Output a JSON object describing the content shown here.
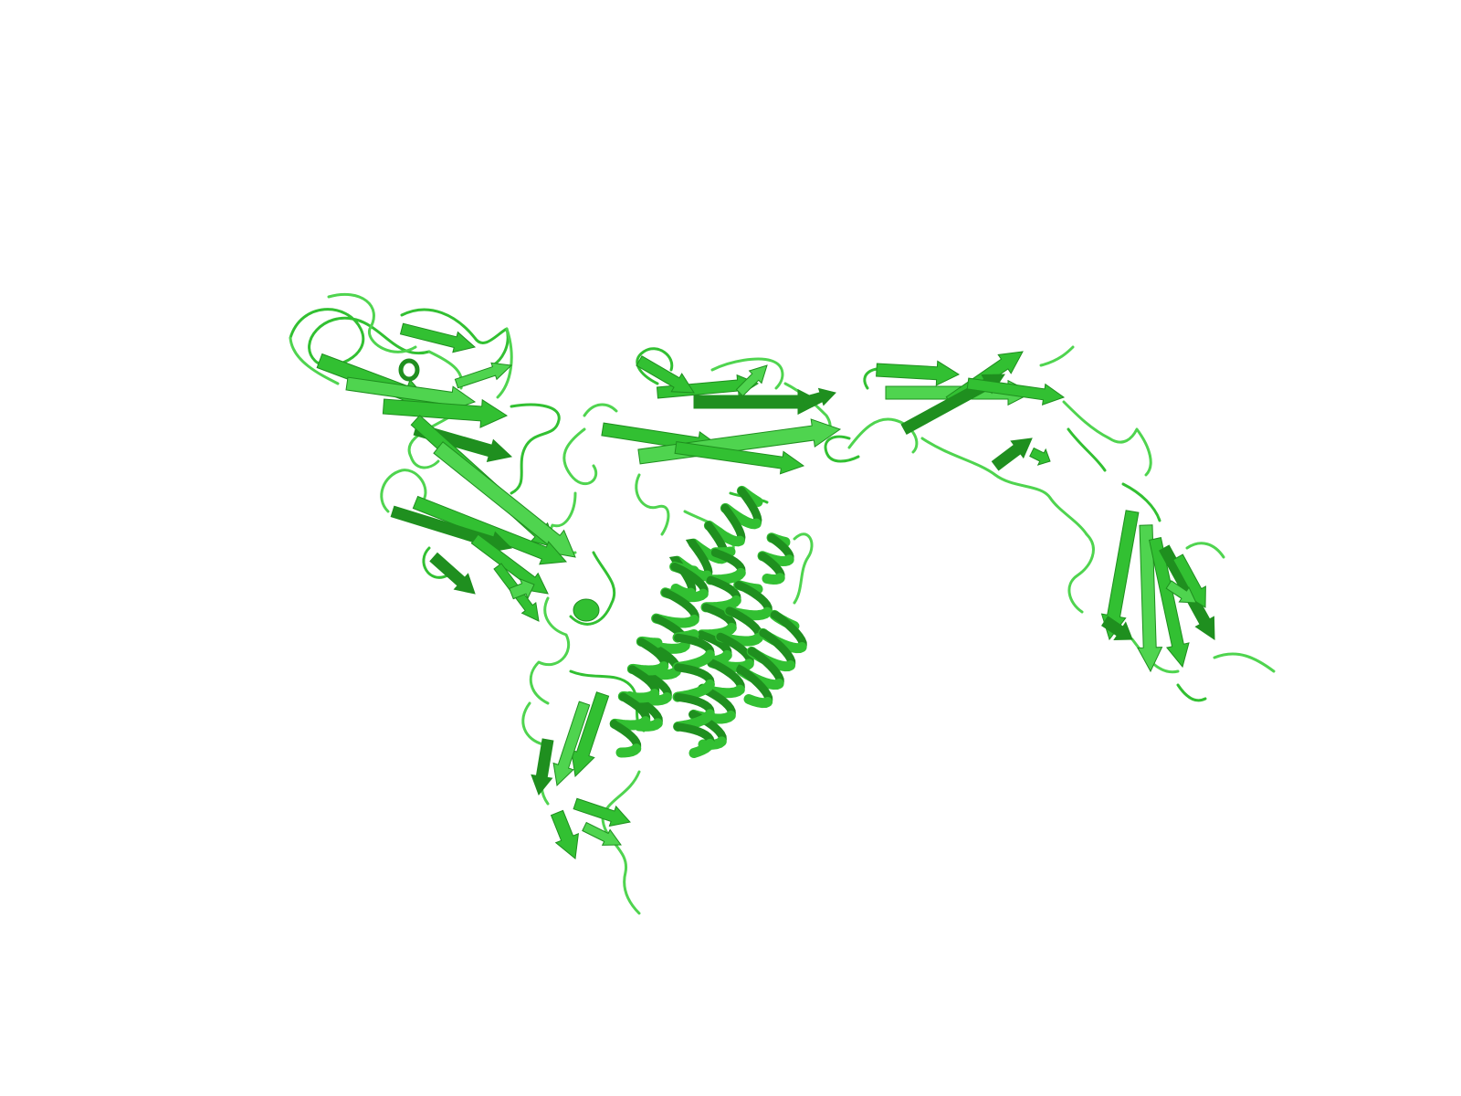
{
  "scene": {
    "type": "protein-cartoon-render",
    "background_color": "#ffffff",
    "colors": {
      "main": "#32c032",
      "light": "#4fd44f",
      "dark": "#1f8f1f",
      "shadow": "#178017"
    },
    "representation": "cartoon"
  },
  "domains": [
    {
      "name": "beta-sandwich-domain-upper-left",
      "element": "beta-sheet"
    },
    {
      "name": "beta-sandwich-domain-top-center",
      "element": "beta-sheet"
    },
    {
      "name": "beta-sandwich-domain-top-right",
      "element": "beta-sheet"
    },
    {
      "name": "helical-bundle-center",
      "element": "alpha-helix"
    },
    {
      "name": "beta-sandwich-domain-lower-left",
      "element": "beta-sheet"
    },
    {
      "name": "beta-sandwich-domain-far-right",
      "element": "beta-sheet"
    }
  ]
}
